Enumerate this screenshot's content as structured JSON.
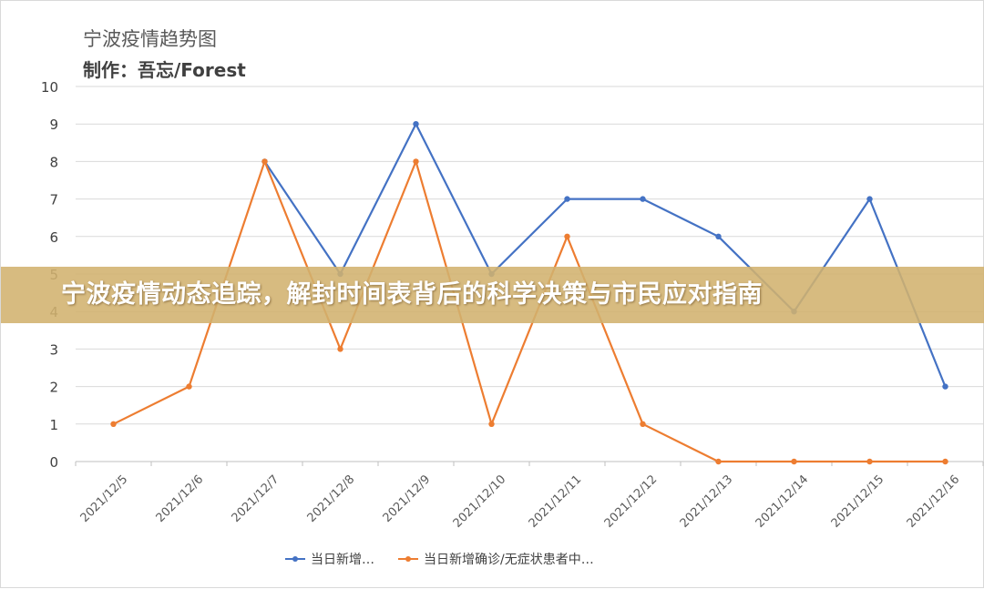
{
  "chart_data": {
    "type": "line",
    "title": "宁波疫情趋势图",
    "subtitle": "制作：吾忘/Forest",
    "categories": [
      "2021/12/5",
      "2021/12/6",
      "2021/12/7",
      "2021/12/8",
      "2021/12/9",
      "2021/12/10",
      "2021/12/11",
      "2021/12/12",
      "2021/12/13",
      "2021/12/14",
      "2021/12/15",
      "2021/12/16"
    ],
    "series": [
      {
        "name": "当日新增…",
        "color": "#4472c4",
        "values": [
          null,
          null,
          8,
          5,
          9,
          5,
          7,
          7,
          6,
          4,
          7,
          2
        ]
      },
      {
        "name": "当日新增确诊/无症状患者中…",
        "color": "#ed7d31",
        "values": [
          1,
          2,
          8,
          3,
          8,
          1,
          6,
          1,
          0,
          0,
          0,
          0
        ]
      }
    ],
    "ylim": [
      0,
      10
    ],
    "yticks": [
      0,
      1,
      2,
      3,
      4,
      5,
      6,
      7,
      8,
      9,
      10
    ],
    "grid": true,
    "legend_position": "bottom"
  },
  "banner": {
    "text": "宁波疫情动态追踪，解封时间表背后的科学决策与市民应对指南",
    "color": "#d2b26e"
  }
}
